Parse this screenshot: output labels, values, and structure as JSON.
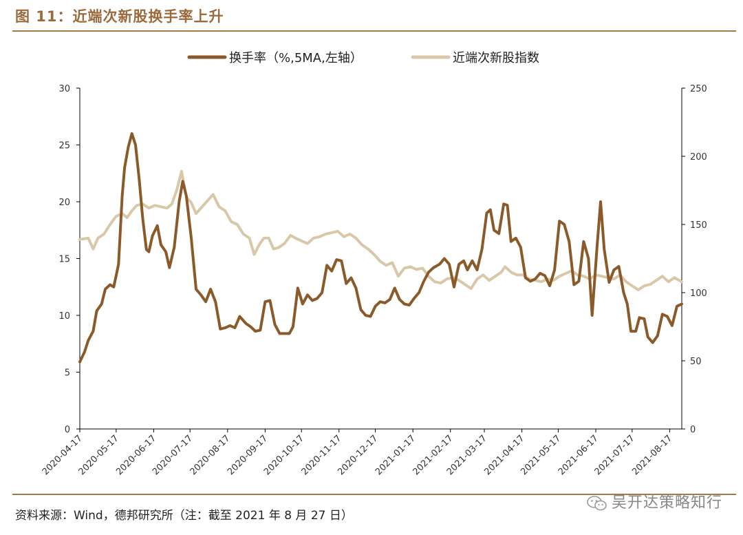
{
  "figure": {
    "title": "图 11：近端次新股换手率上升",
    "source": "资料来源：Wind，德邦研究所（注：截至 2021 年 8 月 27 日）",
    "watermark": "吴开达策略知行",
    "watermark_icon": "wechat-icon"
  },
  "colors": {
    "turnover": "#8a5a2b",
    "index": "#d9c8a8",
    "rule": "#a77746",
    "title": "#9b6a3c"
  },
  "chart_data": {
    "type": "line",
    "legend_position": "top-center",
    "grid": false,
    "x_tick_labels": [
      "2020-04-17",
      "2020-05-17",
      "2020-06-17",
      "2020-07-17",
      "2020-08-17",
      "2020-09-17",
      "2020-10-17",
      "2020-11-17",
      "2020-12-17",
      "2021-01-17",
      "2021-02-17",
      "2021-03-17",
      "2021-04-17",
      "2021-05-17",
      "2021-06-17",
      "2021-07-17",
      "2021-08-17"
    ],
    "x_range": [
      "2020-04-17",
      "2021-08-27"
    ],
    "y_left": {
      "range": [
        0,
        30
      ],
      "ticks": [
        "0",
        "5",
        "10",
        "15",
        "20",
        "25",
        "30"
      ]
    },
    "y_right": {
      "range": [
        0,
        250
      ],
      "ticks": [
        "0",
        "50",
        "100",
        "150",
        "200",
        "250"
      ]
    },
    "series": [
      {
        "name": "换手率（%,5MA,左轴）",
        "axis": "left",
        "points": [
          [
            "2020-04-17",
            5.9
          ],
          [
            "2020-04-21",
            6.8
          ],
          [
            "2020-04-24",
            7.8
          ],
          [
            "2020-04-28",
            8.6
          ],
          [
            "2020-05-01",
            10.4
          ],
          [
            "2020-05-05",
            11.0
          ],
          [
            "2020-05-08",
            12.3
          ],
          [
            "2020-05-12",
            12.7
          ],
          [
            "2020-05-15",
            12.5
          ],
          [
            "2020-05-19",
            14.5
          ],
          [
            "2020-05-22",
            20.5
          ],
          [
            "2020-05-24",
            23.0
          ],
          [
            "2020-05-27",
            24.8
          ],
          [
            "2020-05-30",
            26.0
          ],
          [
            "2020-06-02",
            25.0
          ],
          [
            "2020-06-05",
            22.0
          ],
          [
            "2020-06-08",
            18.5
          ],
          [
            "2020-06-11",
            15.8
          ],
          [
            "2020-06-13",
            15.6
          ],
          [
            "2020-06-16",
            17.0
          ],
          [
            "2020-06-20",
            17.9
          ],
          [
            "2020-06-23",
            16.2
          ],
          [
            "2020-06-27",
            15.6
          ],
          [
            "2020-06-30",
            14.2
          ],
          [
            "2020-07-04",
            16.0
          ],
          [
            "2020-07-08",
            20.0
          ],
          [
            "2020-07-11",
            21.8
          ],
          [
            "2020-07-14",
            20.5
          ],
          [
            "2020-07-18",
            16.8
          ],
          [
            "2020-07-22",
            12.3
          ],
          [
            "2020-07-26",
            11.8
          ],
          [
            "2020-07-30",
            11.2
          ],
          [
            "2020-08-03",
            12.3
          ],
          [
            "2020-08-07",
            11.2
          ],
          [
            "2020-08-11",
            8.8
          ],
          [
            "2020-08-15",
            8.9
          ],
          [
            "2020-08-19",
            9.1
          ],
          [
            "2020-08-23",
            8.9
          ],
          [
            "2020-08-27",
            9.9
          ],
          [
            "2020-09-01",
            9.3
          ],
          [
            "2020-09-05",
            9.0
          ],
          [
            "2020-09-09",
            8.6
          ],
          [
            "2020-09-13",
            8.7
          ],
          [
            "2020-09-17",
            11.2
          ],
          [
            "2020-09-21",
            11.3
          ],
          [
            "2020-09-25",
            9.2
          ],
          [
            "2020-09-29",
            8.4
          ],
          [
            "2020-10-03",
            8.4
          ],
          [
            "2020-10-07",
            8.4
          ],
          [
            "2020-10-10",
            9.0
          ],
          [
            "2020-10-14",
            12.4
          ],
          [
            "2020-10-18",
            11.0
          ],
          [
            "2020-10-22",
            11.8
          ],
          [
            "2020-10-26",
            11.3
          ],
          [
            "2020-10-30",
            11.5
          ],
          [
            "2020-11-03",
            12.0
          ],
          [
            "2020-11-07",
            14.4
          ],
          [
            "2020-11-11",
            13.9
          ],
          [
            "2020-11-15",
            14.9
          ],
          [
            "2020-11-19",
            14.8
          ],
          [
            "2020-11-23",
            12.8
          ],
          [
            "2020-11-27",
            13.3
          ],
          [
            "2020-12-01",
            12.4
          ],
          [
            "2020-12-05",
            10.5
          ],
          [
            "2020-12-09",
            10.0
          ],
          [
            "2020-12-13",
            9.9
          ],
          [
            "2020-12-17",
            10.8
          ],
          [
            "2020-12-21",
            11.2
          ],
          [
            "2020-12-25",
            11.1
          ],
          [
            "2020-12-29",
            11.4
          ],
          [
            "2021-01-02",
            12.4
          ],
          [
            "2021-01-06",
            11.4
          ],
          [
            "2021-01-10",
            11.0
          ],
          [
            "2021-01-14",
            10.9
          ],
          [
            "2021-01-18",
            11.5
          ],
          [
            "2021-01-22",
            12.0
          ],
          [
            "2021-01-26",
            13.0
          ],
          [
            "2021-01-30",
            13.8
          ],
          [
            "2021-02-03",
            14.2
          ],
          [
            "2021-02-08",
            14.5
          ],
          [
            "2021-02-12",
            15.0
          ],
          [
            "2021-02-16",
            14.5
          ],
          [
            "2021-02-20",
            12.5
          ],
          [
            "2021-02-24",
            14.5
          ],
          [
            "2021-02-28",
            14.8
          ],
          [
            "2021-03-03",
            14.0
          ],
          [
            "2021-03-07",
            14.8
          ],
          [
            "2021-03-11",
            14.0
          ],
          [
            "2021-03-15",
            15.8
          ],
          [
            "2021-03-19",
            19.0
          ],
          [
            "2021-03-22",
            19.3
          ],
          [
            "2021-03-25",
            17.5
          ],
          [
            "2021-03-29",
            17.2
          ],
          [
            "2021-04-02",
            19.8
          ],
          [
            "2021-04-05",
            19.7
          ],
          [
            "2021-04-08",
            16.5
          ],
          [
            "2021-04-12",
            16.8
          ],
          [
            "2021-04-16",
            16.0
          ],
          [
            "2021-04-20",
            13.3
          ],
          [
            "2021-04-24",
            13.0
          ],
          [
            "2021-04-28",
            13.2
          ],
          [
            "2021-05-02",
            13.7
          ],
          [
            "2021-05-06",
            13.5
          ],
          [
            "2021-05-10",
            12.6
          ],
          [
            "2021-05-14",
            14.0
          ],
          [
            "2021-05-18",
            18.3
          ],
          [
            "2021-05-22",
            18.0
          ],
          [
            "2021-05-26",
            16.5
          ],
          [
            "2021-05-30",
            12.7
          ],
          [
            "2021-06-03",
            13.0
          ],
          [
            "2021-06-07",
            16.5
          ],
          [
            "2021-06-11",
            15.0
          ],
          [
            "2021-06-14",
            10.0
          ],
          [
            "2021-06-18",
            16.0
          ],
          [
            "2021-06-21",
            20.0
          ],
          [
            "2021-06-24",
            15.8
          ],
          [
            "2021-06-28",
            12.9
          ],
          [
            "2021-07-02",
            14.0
          ],
          [
            "2021-07-06",
            14.3
          ],
          [
            "2021-07-10",
            12.0
          ],
          [
            "2021-07-13",
            11.0
          ],
          [
            "2021-07-16",
            8.6
          ],
          [
            "2021-07-20",
            8.6
          ],
          [
            "2021-07-23",
            9.8
          ],
          [
            "2021-07-27",
            9.7
          ],
          [
            "2021-07-30",
            8.1
          ],
          [
            "2021-08-03",
            7.6
          ],
          [
            "2021-08-07",
            8.2
          ],
          [
            "2021-08-11",
            10.1
          ],
          [
            "2021-08-15",
            9.9
          ],
          [
            "2021-08-19",
            9.1
          ],
          [
            "2021-08-23",
            10.8
          ],
          [
            "2021-08-27",
            11.0
          ]
        ]
      },
      {
        "name": "近端次新股指数",
        "axis": "right",
        "points": [
          [
            "2020-04-17",
            139
          ],
          [
            "2020-04-24",
            140
          ],
          [
            "2020-04-28",
            132
          ],
          [
            "2020-05-02",
            140
          ],
          [
            "2020-05-07",
            143
          ],
          [
            "2020-05-12",
            150
          ],
          [
            "2020-05-17",
            156
          ],
          [
            "2020-05-22",
            158
          ],
          [
            "2020-05-26",
            155
          ],
          [
            "2020-05-30",
            160
          ],
          [
            "2020-06-03",
            164
          ],
          [
            "2020-06-08",
            165
          ],
          [
            "2020-06-13",
            162
          ],
          [
            "2020-06-18",
            164
          ],
          [
            "2020-06-23",
            163
          ],
          [
            "2020-06-28",
            162
          ],
          [
            "2020-07-02",
            165
          ],
          [
            "2020-07-06",
            175
          ],
          [
            "2020-07-10",
            189
          ],
          [
            "2020-07-14",
            170
          ],
          [
            "2020-07-18",
            166
          ],
          [
            "2020-07-22",
            158
          ],
          [
            "2020-07-27",
            163
          ],
          [
            "2020-08-01",
            168
          ],
          [
            "2020-08-05",
            172
          ],
          [
            "2020-08-10",
            163
          ],
          [
            "2020-08-15",
            160
          ],
          [
            "2020-08-20",
            152
          ],
          [
            "2020-08-25",
            150
          ],
          [
            "2020-08-30",
            143
          ],
          [
            "2020-09-04",
            140
          ],
          [
            "2020-09-08",
            128
          ],
          [
            "2020-09-12",
            135
          ],
          [
            "2020-09-16",
            140
          ],
          [
            "2020-09-20",
            140
          ],
          [
            "2020-09-24",
            132
          ],
          [
            "2020-09-28",
            133
          ],
          [
            "2020-10-03",
            136
          ],
          [
            "2020-10-08",
            142
          ],
          [
            "2020-10-12",
            140
          ],
          [
            "2020-10-17",
            138
          ],
          [
            "2020-10-22",
            136
          ],
          [
            "2020-10-27",
            140
          ],
          [
            "2020-11-01",
            141
          ],
          [
            "2020-11-06",
            143
          ],
          [
            "2020-11-11",
            144
          ],
          [
            "2020-11-16",
            145
          ],
          [
            "2020-11-21",
            141
          ],
          [
            "2020-11-26",
            143
          ],
          [
            "2020-12-01",
            140
          ],
          [
            "2020-12-06",
            135
          ],
          [
            "2020-12-11",
            132
          ],
          [
            "2020-12-16",
            128
          ],
          [
            "2020-12-21",
            123
          ],
          [
            "2020-12-26",
            120
          ],
          [
            "2020-12-31",
            122
          ],
          [
            "2021-01-05",
            112
          ],
          [
            "2021-01-10",
            118
          ],
          [
            "2021-01-15",
            119
          ],
          [
            "2021-01-20",
            117
          ],
          [
            "2021-01-25",
            118
          ],
          [
            "2021-01-30",
            112
          ],
          [
            "2021-02-04",
            108
          ],
          [
            "2021-02-09",
            107
          ],
          [
            "2021-02-14",
            110
          ],
          [
            "2021-02-19",
            111
          ],
          [
            "2021-02-24",
            109
          ],
          [
            "2021-03-01",
            106
          ],
          [
            "2021-03-06",
            103
          ],
          [
            "2021-03-11",
            110
          ],
          [
            "2021-03-16",
            113
          ],
          [
            "2021-03-21",
            109
          ],
          [
            "2021-03-26",
            112
          ],
          [
            "2021-03-31",
            115
          ],
          [
            "2021-04-03",
            119
          ],
          [
            "2021-04-08",
            115
          ],
          [
            "2021-04-13",
            113
          ],
          [
            "2021-04-18",
            113
          ],
          [
            "2021-04-23",
            110
          ],
          [
            "2021-04-28",
            109
          ],
          [
            "2021-05-03",
            108
          ],
          [
            "2021-05-08",
            110
          ],
          [
            "2021-05-13",
            109
          ],
          [
            "2021-05-18",
            112
          ],
          [
            "2021-05-23",
            114
          ],
          [
            "2021-05-28",
            116
          ],
          [
            "2021-06-02",
            113
          ],
          [
            "2021-06-07",
            112
          ],
          [
            "2021-06-12",
            110
          ],
          [
            "2021-06-17",
            113
          ],
          [
            "2021-06-22",
            112
          ],
          [
            "2021-06-27",
            111
          ],
          [
            "2021-07-02",
            110
          ],
          [
            "2021-07-07",
            113
          ],
          [
            "2021-07-12",
            108
          ],
          [
            "2021-07-17",
            105
          ],
          [
            "2021-07-22",
            102
          ],
          [
            "2021-07-27",
            105
          ],
          [
            "2021-08-01",
            106
          ],
          [
            "2021-08-06",
            109
          ],
          [
            "2021-08-11",
            112
          ],
          [
            "2021-08-16",
            108
          ],
          [
            "2021-08-21",
            111
          ],
          [
            "2021-08-27",
            108
          ]
        ]
      }
    ]
  }
}
